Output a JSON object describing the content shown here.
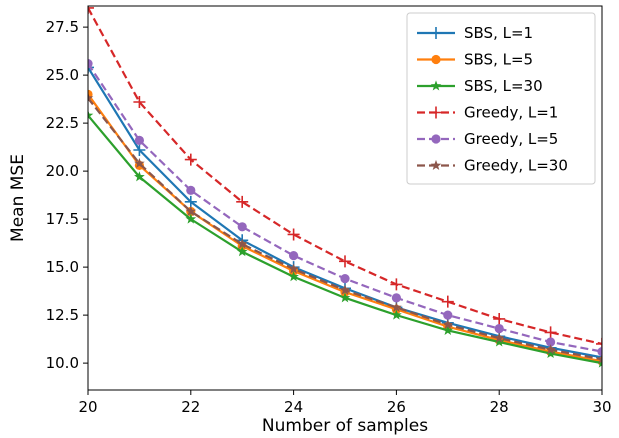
{
  "chart_data": {
    "type": "line",
    "title": "",
    "xlabel": "Number of samples",
    "ylabel": "Mean MSE",
    "xlim": [
      20,
      30
    ],
    "ylim": [
      8.6,
      28.6
    ],
    "xticks": [
      20,
      22,
      24,
      26,
      28,
      30
    ],
    "yticks": [
      10.0,
      12.5,
      15.0,
      17.5,
      20.0,
      22.5,
      25.0,
      27.5
    ],
    "grid": false,
    "legend_position": "top-right",
    "x": [
      20,
      21,
      22,
      23,
      24,
      25,
      26,
      27,
      28,
      29,
      30
    ],
    "series": [
      {
        "name": "SBS, L=1",
        "color": "#1f77b4",
        "dash": "solid",
        "marker": "plus",
        "values": [
          25.4,
          21.1,
          18.4,
          16.4,
          15.0,
          13.9,
          12.9,
          12.1,
          11.4,
          10.8,
          10.3
        ]
      },
      {
        "name": "SBS, L=5",
        "color": "#ff7f0e",
        "dash": "solid",
        "marker": "circle",
        "values": [
          24.0,
          20.3,
          17.9,
          16.1,
          14.8,
          13.7,
          12.8,
          11.9,
          11.2,
          10.6,
          10.1
        ]
      },
      {
        "name": "SBS, L=30",
        "color": "#2ca02c",
        "dash": "solid",
        "marker": "star",
        "values": [
          22.9,
          19.7,
          17.5,
          15.8,
          14.5,
          13.4,
          12.5,
          11.7,
          11.1,
          10.5,
          10.0
        ]
      },
      {
        "name": "Greedy, L=1",
        "color": "#d62728",
        "dash": "dashed",
        "marker": "plus",
        "values": [
          28.5,
          23.6,
          20.6,
          18.4,
          16.7,
          15.3,
          14.1,
          13.2,
          12.3,
          11.6,
          11.0
        ]
      },
      {
        "name": "Greedy, L=5",
        "color": "#9467bd",
        "dash": "dashed",
        "marker": "circle",
        "values": [
          25.6,
          21.6,
          19.0,
          17.1,
          15.6,
          14.4,
          13.4,
          12.5,
          11.8,
          11.1,
          10.6
        ]
      },
      {
        "name": "Greedy, L=30",
        "color": "#8c564b",
        "dash": "dashed",
        "marker": "star",
        "values": [
          23.8,
          20.4,
          17.9,
          16.2,
          14.9,
          13.8,
          12.9,
          12.0,
          11.3,
          10.7,
          10.2
        ]
      }
    ]
  }
}
